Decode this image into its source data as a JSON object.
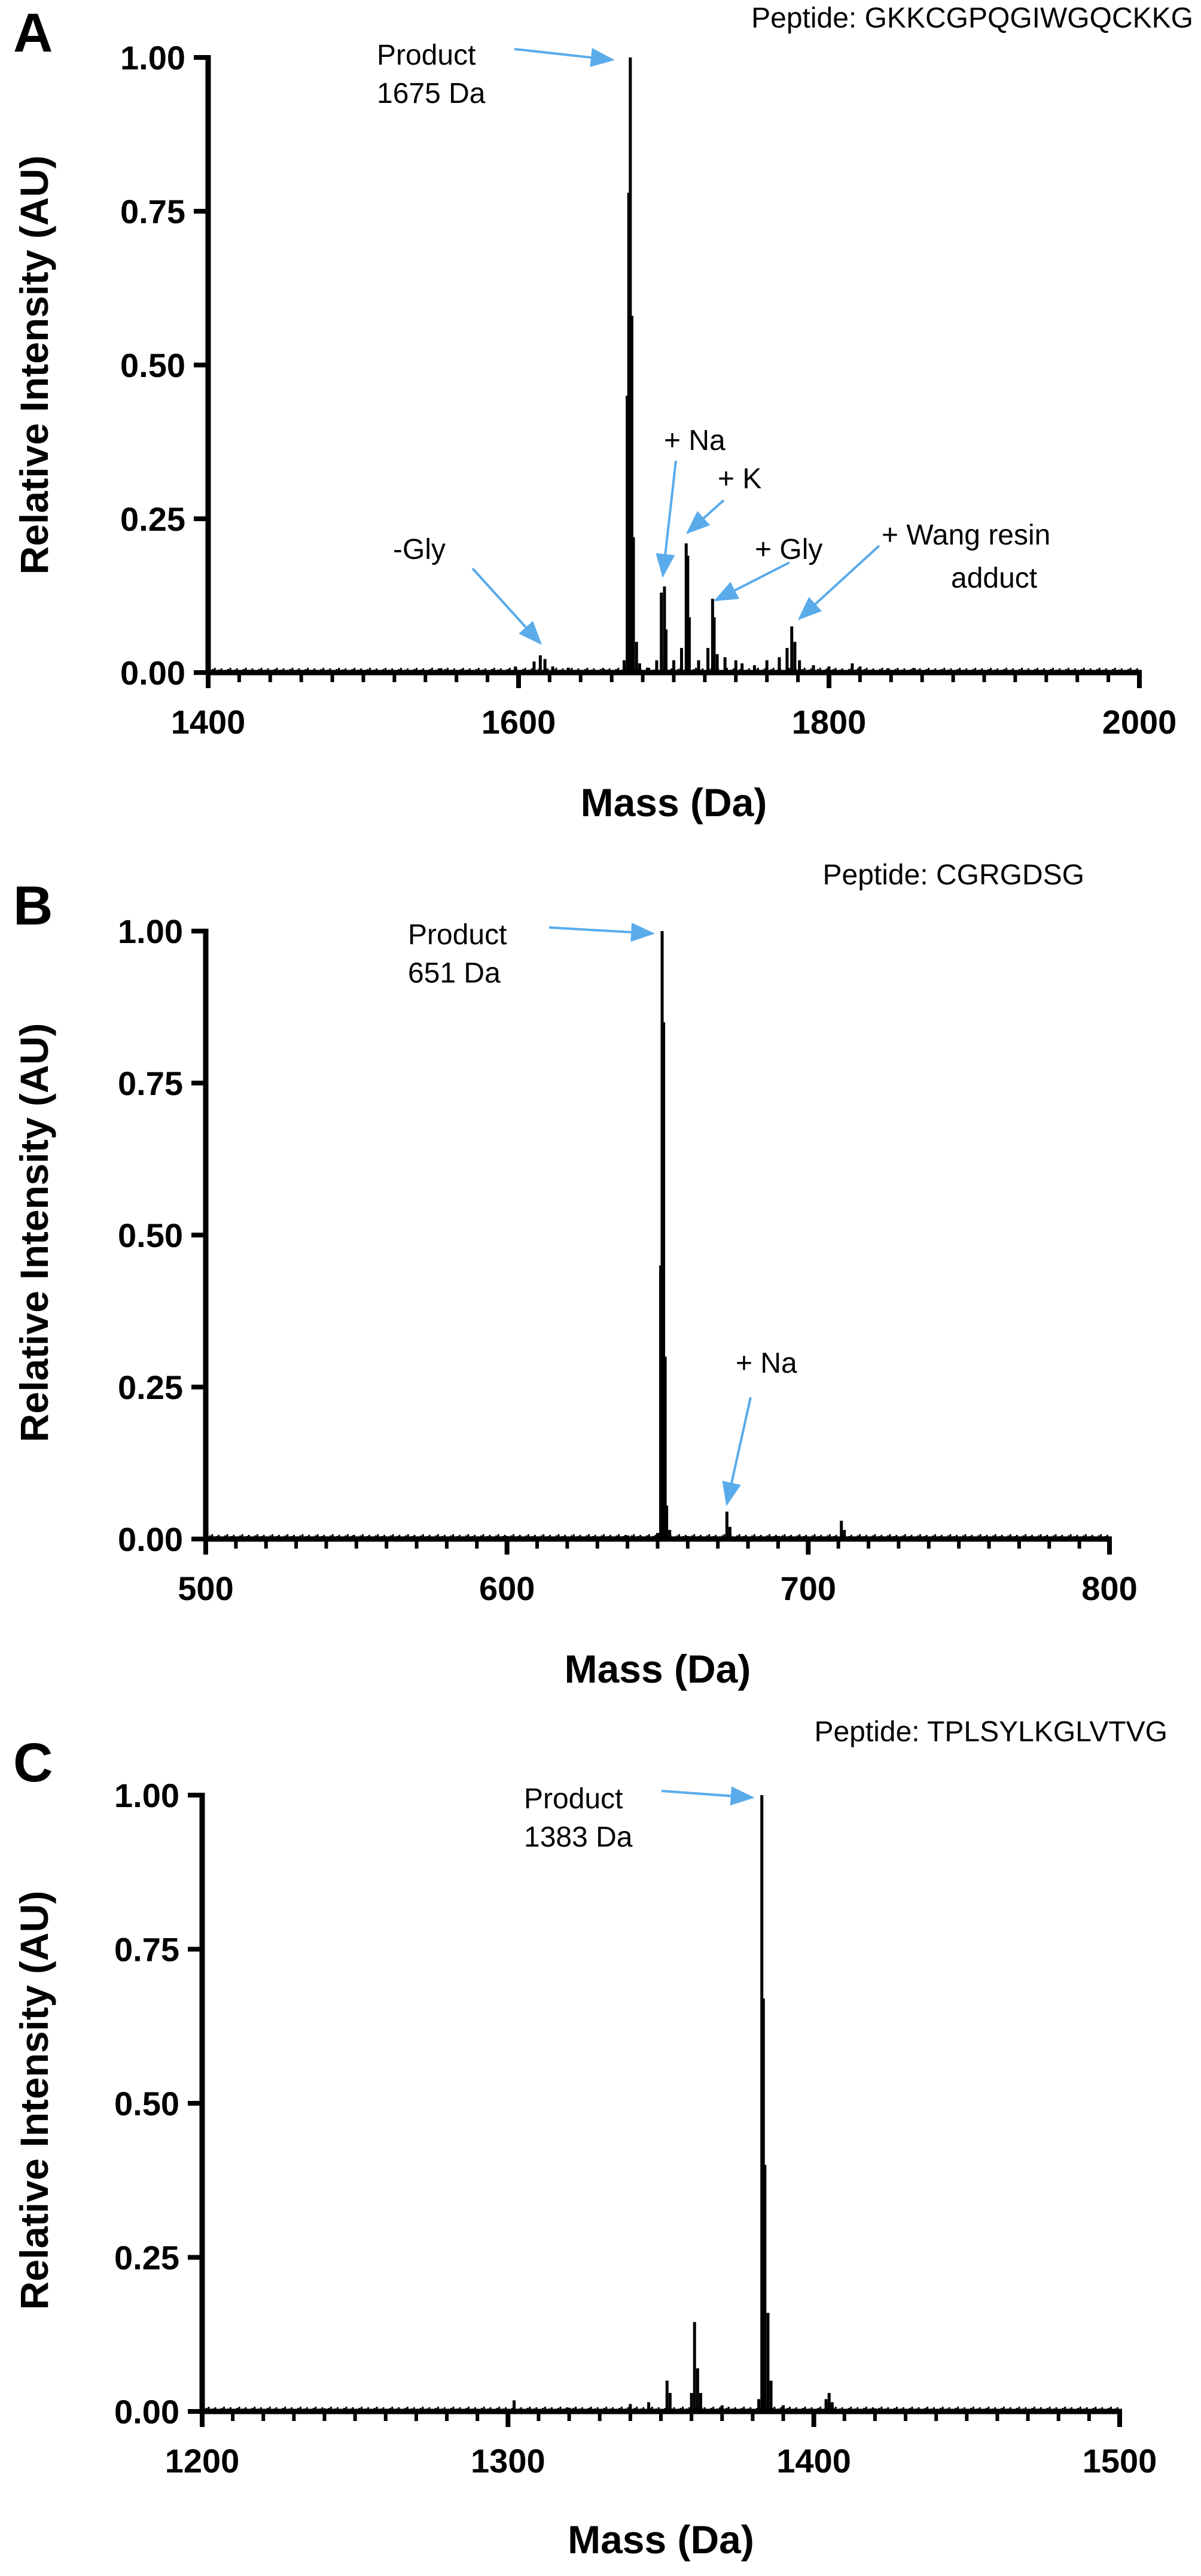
{
  "chart_data": [
    {
      "type": "line",
      "panel": "A",
      "peptide_label": "Peptide: GKKCGPQGIWGQCKKG",
      "xlabel": "Mass (Da)",
      "ylabel": "Relative Intensity (AU)",
      "xlim": [
        1400,
        2000
      ],
      "ylim": [
        0,
        1
      ],
      "xticks": [
        1400,
        1600,
        1800,
        2000
      ],
      "xtick_labels": [
        "1400",
        "1600",
        "1800",
        "2000"
      ],
      "yticks": [
        0,
        0.25,
        0.5,
        0.75,
        1.0
      ],
      "ytick_labels": [
        "0.00",
        "0.25",
        "0.50",
        "0.75",
        "1.00"
      ],
      "peaks": [
        {
          "x": 1487,
          "y": 0.005
        },
        {
          "x": 1550,
          "y": 0.007
        },
        {
          "x": 1598,
          "y": 0.01
        },
        {
          "x": 1610,
          "y": 0.018
        },
        {
          "x": 1614,
          "y": 0.028
        },
        {
          "x": 1617,
          "y": 0.022
        },
        {
          "x": 1622,
          "y": 0.01
        },
        {
          "x": 1632,
          "y": 0.008
        },
        {
          "x": 1655,
          "y": 0.006
        },
        {
          "x": 1668,
          "y": 0.02
        },
        {
          "x": 1670,
          "y": 0.45
        },
        {
          "x": 1671,
          "y": 0.78
        },
        {
          "x": 1672,
          "y": 1.0
        },
        {
          "x": 1673,
          "y": 0.58
        },
        {
          "x": 1674,
          "y": 0.22
        },
        {
          "x": 1676,
          "y": 0.05
        },
        {
          "x": 1678,
          "y": 0.015
        },
        {
          "x": 1683,
          "y": 0.008
        },
        {
          "x": 1689,
          "y": 0.02
        },
        {
          "x": 1692,
          "y": 0.13
        },
        {
          "x": 1694,
          "y": 0.14
        },
        {
          "x": 1695,
          "y": 0.07
        },
        {
          "x": 1700,
          "y": 0.02
        },
        {
          "x": 1705,
          "y": 0.04
        },
        {
          "x": 1708,
          "y": 0.21
        },
        {
          "x": 1709,
          "y": 0.19
        },
        {
          "x": 1710,
          "y": 0.09
        },
        {
          "x": 1716,
          "y": 0.02
        },
        {
          "x": 1722,
          "y": 0.04
        },
        {
          "x": 1725,
          "y": 0.12
        },
        {
          "x": 1726,
          "y": 0.09
        },
        {
          "x": 1728,
          "y": 0.03
        },
        {
          "x": 1733,
          "y": 0.025
        },
        {
          "x": 1740,
          "y": 0.02
        },
        {
          "x": 1744,
          "y": 0.015
        },
        {
          "x": 1752,
          "y": 0.012
        },
        {
          "x": 1760,
          "y": 0.02
        },
        {
          "x": 1768,
          "y": 0.025
        },
        {
          "x": 1773,
          "y": 0.04
        },
        {
          "x": 1776,
          "y": 0.075
        },
        {
          "x": 1778,
          "y": 0.05
        },
        {
          "x": 1781,
          "y": 0.02
        },
        {
          "x": 1790,
          "y": 0.012
        },
        {
          "x": 1800,
          "y": 0.01
        },
        {
          "x": 1815,
          "y": 0.015
        },
        {
          "x": 1820,
          "y": 0.01
        },
        {
          "x": 1838,
          "y": 0.007
        },
        {
          "x": 1855,
          "y": 0.007
        },
        {
          "x": 1872,
          "y": 0.005
        },
        {
          "x": 1905,
          "y": 0.004
        },
        {
          "x": 1962,
          "y": 0.004
        }
      ],
      "annotations": [
        {
          "text": [
            "Product",
            "1675 Da"
          ],
          "target": [
            1672,
            1.0
          ]
        },
        {
          "text": [
            "+ Na"
          ],
          "target": [
            1693,
            0.15
          ]
        },
        {
          "text": [
            "+ K"
          ],
          "target": [
            1709,
            0.22
          ]
        },
        {
          "text": [
            "+ Gly"
          ],
          "target": [
            1727,
            0.11
          ]
        },
        {
          "text": [
            "+ Wang resin",
            "adduct"
          ],
          "target": [
            1781,
            0.08
          ]
        },
        {
          "text": [
            "-Gly"
          ],
          "target": [
            1614,
            0.04
          ]
        }
      ]
    },
    {
      "type": "line",
      "panel": "B",
      "peptide_label": "Peptide: CGRGDSG",
      "xlabel": "Mass (Da)",
      "ylabel": "Relative Intensity (AU)",
      "xlim": [
        500,
        800
      ],
      "ylim": [
        0,
        1
      ],
      "xticks": [
        500,
        600,
        700,
        800
      ],
      "xtick_labels": [
        "500",
        "600",
        "700",
        "800"
      ],
      "yticks": [
        0,
        0.25,
        0.5,
        0.75,
        1.0
      ],
      "ytick_labels": [
        "0.00",
        "0.25",
        "0.50",
        "0.75",
        "1.00"
      ],
      "peaks": [
        {
          "x": 537,
          "y": 0.005
        },
        {
          "x": 549,
          "y": 0.006
        },
        {
          "x": 570,
          "y": 0.004
        },
        {
          "x": 600,
          "y": 0.005
        },
        {
          "x": 620,
          "y": 0.004
        },
        {
          "x": 640,
          "y": 0.006
        },
        {
          "x": 650,
          "y": 0.01
        },
        {
          "x": 651,
          "y": 0.45
        },
        {
          "x": 651.5,
          "y": 1.0
        },
        {
          "x": 652,
          "y": 0.85
        },
        {
          "x": 652.5,
          "y": 0.3
        },
        {
          "x": 653,
          "y": 0.055
        },
        {
          "x": 654,
          "y": 0.015
        },
        {
          "x": 660,
          "y": 0.005
        },
        {
          "x": 673,
          "y": 0.045
        },
        {
          "x": 674,
          "y": 0.02
        },
        {
          "x": 690,
          "y": 0.005
        },
        {
          "x": 711,
          "y": 0.03
        },
        {
          "x": 712,
          "y": 0.015
        },
        {
          "x": 730,
          "y": 0.004
        }
      ],
      "annotations": [
        {
          "text": [
            "Product",
            "651 Da"
          ],
          "target": [
            651.5,
            1.0
          ]
        },
        {
          "text": [
            "+ Na"
          ],
          "target": [
            673,
            0.05
          ]
        }
      ]
    },
    {
      "type": "line",
      "panel": "C",
      "peptide_label": "Peptide: TPLSYLKGLVTVG",
      "xlabel": "Mass (Da)",
      "ylabel": "Relative Intensity (AU)",
      "xlim": [
        1200,
        1500
      ],
      "ylim": [
        0,
        1
      ],
      "xticks": [
        1200,
        1300,
        1400,
        1500
      ],
      "xtick_labels": [
        "1200",
        "1300",
        "1400",
        "1500"
      ],
      "yticks": [
        0,
        0.25,
        0.5,
        0.75,
        1.0
      ],
      "ytick_labels": [
        "0.00",
        "0.25",
        "0.50",
        "0.75",
        "1.00"
      ],
      "peaks": [
        {
          "x": 1210,
          "y": 0.004
        },
        {
          "x": 1240,
          "y": 0.005
        },
        {
          "x": 1280,
          "y": 0.004
        },
        {
          "x": 1302,
          "y": 0.018
        },
        {
          "x": 1320,
          "y": 0.006
        },
        {
          "x": 1340,
          "y": 0.012
        },
        {
          "x": 1346,
          "y": 0.015
        },
        {
          "x": 1352,
          "y": 0.05
        },
        {
          "x": 1353,
          "y": 0.03
        },
        {
          "x": 1360,
          "y": 0.03
        },
        {
          "x": 1361,
          "y": 0.145
        },
        {
          "x": 1362,
          "y": 0.07
        },
        {
          "x": 1363,
          "y": 0.03
        },
        {
          "x": 1370,
          "y": 0.01
        },
        {
          "x": 1382,
          "y": 0.02
        },
        {
          "x": 1383,
          "y": 1.0
        },
        {
          "x": 1383.5,
          "y": 0.67
        },
        {
          "x": 1384,
          "y": 0.4
        },
        {
          "x": 1385,
          "y": 0.16
        },
        {
          "x": 1386,
          "y": 0.05
        },
        {
          "x": 1390,
          "y": 0.01
        },
        {
          "x": 1404,
          "y": 0.02
        },
        {
          "x": 1405,
          "y": 0.03
        },
        {
          "x": 1406,
          "y": 0.015
        },
        {
          "x": 1420,
          "y": 0.005
        },
        {
          "x": 1450,
          "y": 0.004
        },
        {
          "x": 1480,
          "y": 0.003
        }
      ],
      "annotations": [
        {
          "text": [
            "Product",
            "1383 Da"
          ],
          "target": [
            1383,
            1.0
          ]
        }
      ]
    }
  ],
  "colors": {
    "axis": "#000000",
    "trace": "#000000",
    "annotation_arrow": "#5aabea"
  }
}
